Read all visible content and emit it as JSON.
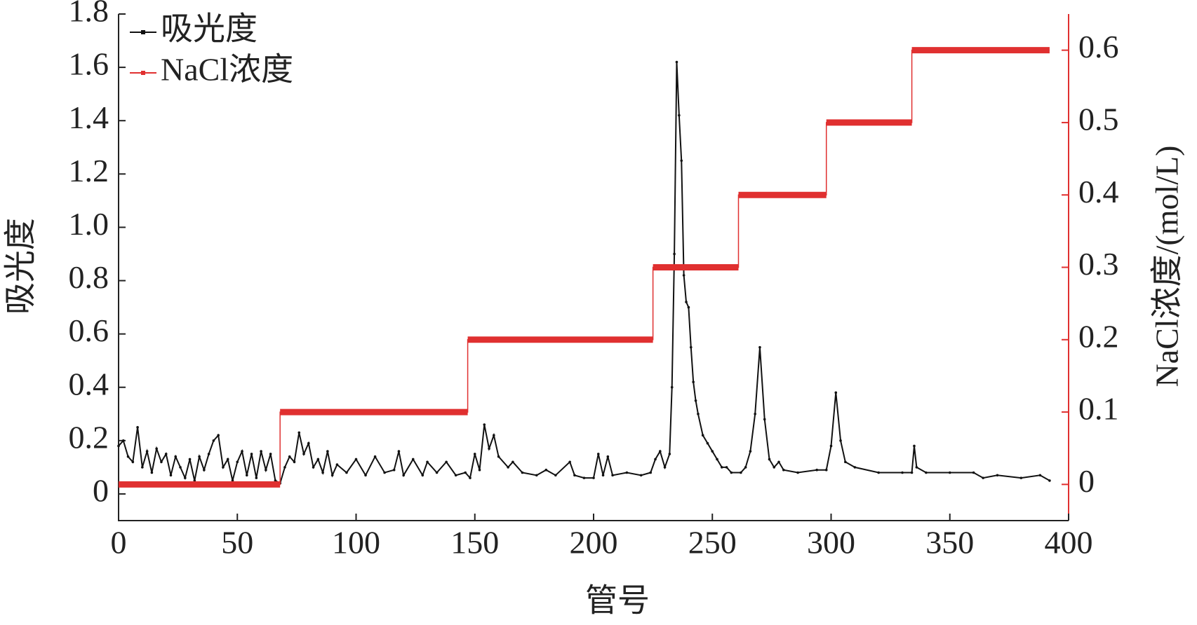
{
  "chart_data": {
    "type": "line",
    "xlabel": "管号",
    "ylabel": "吸光度",
    "y2label": "NaCl浓度/(mol/L)",
    "xlim": [
      0,
      400
    ],
    "xticks": [
      0,
      50,
      100,
      150,
      200,
      250,
      300,
      350,
      400
    ],
    "ylim": [
      -0.1,
      1.8
    ],
    "yticks": [
      0,
      0.2,
      0.4,
      0.6,
      0.8,
      {
        "value": 1,
        "label": "1.0"
      },
      1.2,
      1.4,
      1.6,
      1.8
    ],
    "y2lim": [
      -0.05,
      0.65
    ],
    "y2ticks": [
      0,
      0.1,
      0.2,
      0.3,
      0.4,
      0.5,
      0.6
    ],
    "legend": "upper left",
    "series": [
      {
        "name": "吸光度",
        "color": "#111111",
        "x": [
          0,
          2,
          4,
          6,
          8,
          10,
          12,
          14,
          16,
          18,
          20,
          22,
          24,
          26,
          28,
          30,
          32,
          34,
          36,
          38,
          40,
          42,
          44,
          46,
          48,
          50,
          52,
          54,
          56,
          58,
          60,
          62,
          64,
          66,
          68,
          70,
          72,
          74,
          76,
          78,
          80,
          82,
          84,
          86,
          88,
          90,
          92,
          96,
          100,
          104,
          108,
          112,
          116,
          118,
          120,
          124,
          128,
          130,
          134,
          138,
          142,
          146,
          148,
          150,
          152,
          154,
          156,
          158,
          160,
          164,
          166,
          170,
          176,
          180,
          184,
          190,
          192,
          196,
          200,
          202,
          204,
          206,
          208,
          214,
          220,
          224,
          226,
          228,
          230,
          232,
          233,
          234,
          235,
          236,
          237,
          238,
          239,
          240,
          241,
          242,
          243,
          244,
          246,
          248,
          250,
          252,
          254,
          256,
          258,
          262,
          264,
          266,
          268,
          270,
          272,
          274,
          276,
          278,
          280,
          286,
          294,
          298,
          300,
          302,
          304,
          306,
          310,
          320,
          330,
          334,
          335,
          336,
          340,
          350,
          360,
          364,
          370,
          380,
          388,
          392
        ],
        "values": [
          0.18,
          0.2,
          0.14,
          0.12,
          0.25,
          0.1,
          0.16,
          0.08,
          0.17,
          0.12,
          0.15,
          0.07,
          0.14,
          0.1,
          0.06,
          0.13,
          0.05,
          0.14,
          0.09,
          0.15,
          0.2,
          0.22,
          0.1,
          0.13,
          0.05,
          0.12,
          0.16,
          0.07,
          0.15,
          0.06,
          0.16,
          0.09,
          0.15,
          0.05,
          0.04,
          0.1,
          0.14,
          0.12,
          0.23,
          0.15,
          0.19,
          0.1,
          0.13,
          0.08,
          0.16,
          0.07,
          0.11,
          0.08,
          0.13,
          0.07,
          0.14,
          0.08,
          0.09,
          0.16,
          0.07,
          0.13,
          0.07,
          0.12,
          0.08,
          0.12,
          0.07,
          0.08,
          0.06,
          0.15,
          0.09,
          0.26,
          0.17,
          0.22,
          0.14,
          0.1,
          0.12,
          0.08,
          0.07,
          0.09,
          0.07,
          0.12,
          0.07,
          0.06,
          0.06,
          0.15,
          0.07,
          0.14,
          0.07,
          0.08,
          0.07,
          0.08,
          0.13,
          0.16,
          0.1,
          0.15,
          0.4,
          0.9,
          1.62,
          1.42,
          1.25,
          0.82,
          0.72,
          0.7,
          0.55,
          0.42,
          0.35,
          0.3,
          0.22,
          0.19,
          0.16,
          0.13,
          0.1,
          0.1,
          0.08,
          0.08,
          0.1,
          0.16,
          0.3,
          0.55,
          0.28,
          0.13,
          0.1,
          0.12,
          0.09,
          0.08,
          0.09,
          0.09,
          0.18,
          0.38,
          0.2,
          0.12,
          0.1,
          0.08,
          0.08,
          0.08,
          0.18,
          0.1,
          0.08,
          0.08,
          0.08,
          0.06,
          0.07,
          0.06,
          0.07,
          0.05
        ]
      },
      {
        "name": "NaCl浓度",
        "color": "#e03030",
        "axis": "y2",
        "x": [
          0,
          68,
          68,
          147,
          147,
          225,
          225,
          261,
          261,
          298,
          298,
          334,
          334,
          392
        ],
        "values": [
          0,
          0,
          0.1,
          0.1,
          0.2,
          0.2,
          0.3,
          0.3,
          0.4,
          0.4,
          0.5,
          0.5,
          0.6,
          0.6
        ]
      }
    ]
  }
}
